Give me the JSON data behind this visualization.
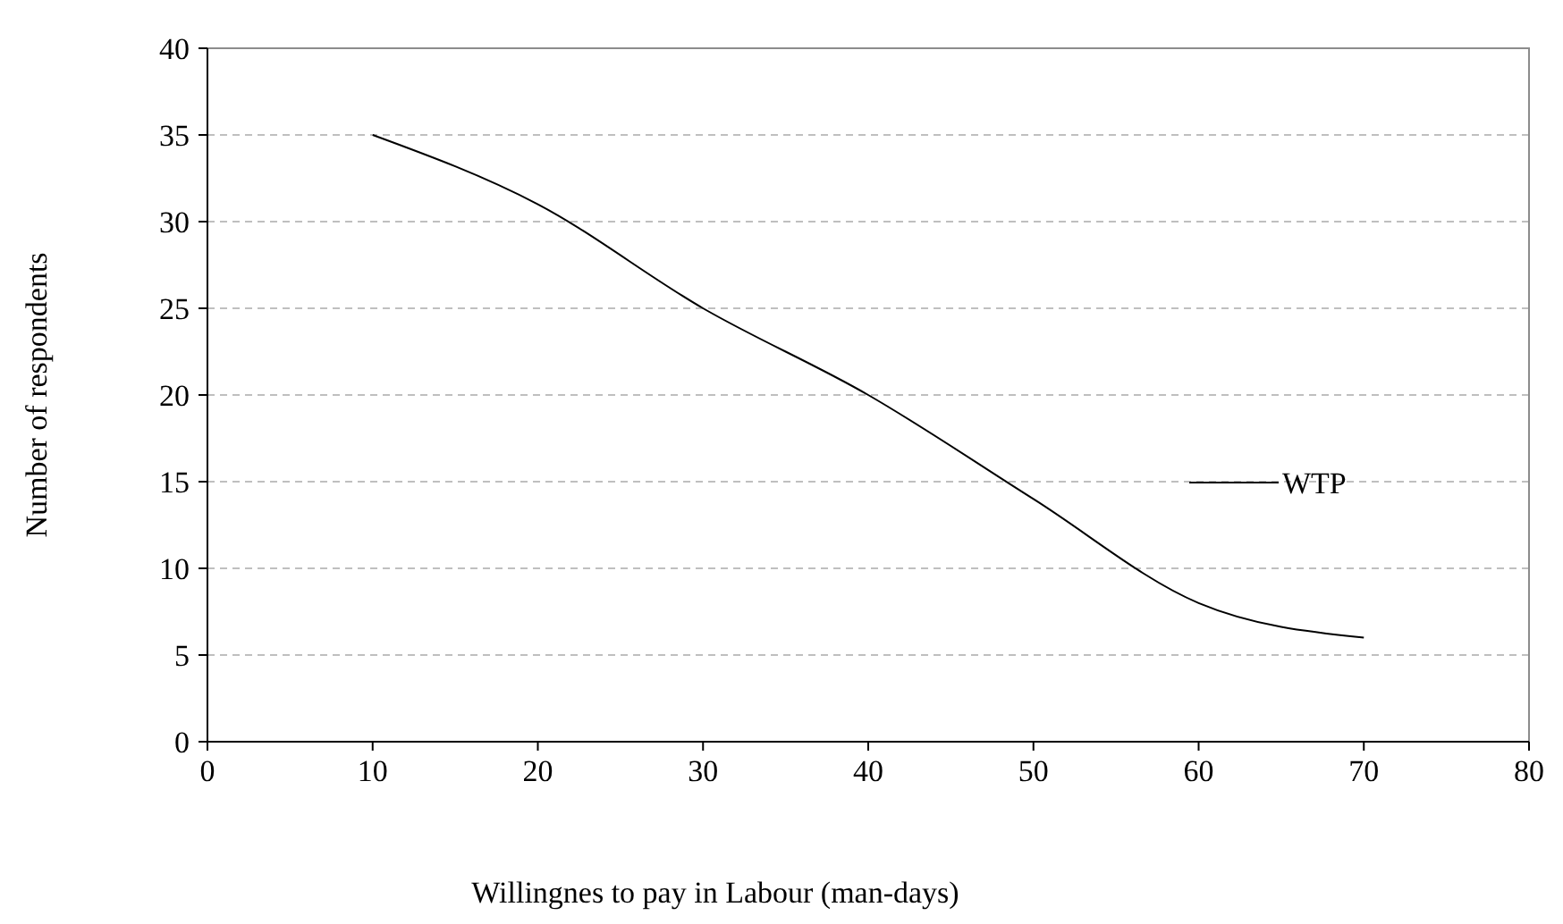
{
  "chart_data": {
    "type": "line",
    "xlabel": "Willingnes to pay in  Labour (man-days)",
    "ylabel": "Number of respondents",
    "x": [
      10,
      20,
      30,
      40,
      50,
      60,
      70
    ],
    "series": [
      {
        "name": "WTP",
        "color": "#000000",
        "values": [
          35,
          31,
          25,
          20,
          14,
          8,
          6
        ]
      }
    ],
    "xlim": [
      0,
      80
    ],
    "xticks": [
      0,
      10,
      20,
      30,
      40,
      50,
      60,
      70,
      80
    ],
    "ylim": [
      0,
      40
    ],
    "yticks": [
      0,
      5,
      10,
      15,
      20,
      25,
      30,
      35,
      40
    ],
    "grid": "y",
    "legend": "right",
    "marker": "none",
    "line_style": "solid"
  }
}
